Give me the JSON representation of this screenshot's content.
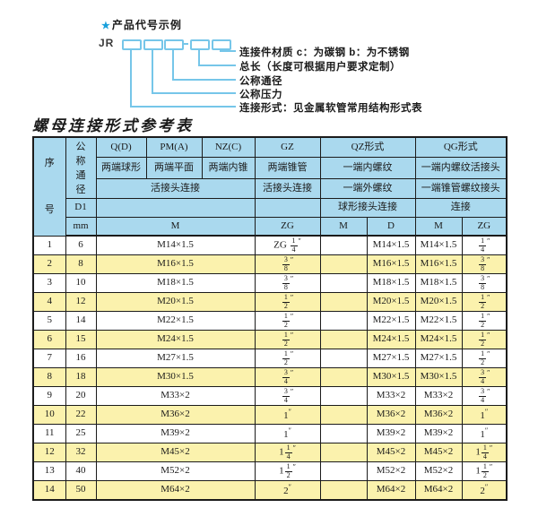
{
  "diagram": {
    "star": "★",
    "title": "产品代号示例",
    "code_prefix": "JR",
    "labels": [
      "连接件材质  c：为碳钢  b：为不锈钢",
      "总长（长度可根据用户要求定制）",
      "公称通径",
      "公称压力",
      "连接形式：见金属软管常用结构形式表"
    ]
  },
  "table_title": "螺母连接形式参考表",
  "table": {
    "header": {
      "seq": "序号",
      "dn": "公称通径",
      "d1": "D1",
      "mm": "mm",
      "groups": [
        "Q(D)",
        "PM(A)",
        "NZ(C)",
        "GZ",
        "QZ形式",
        "QG形式"
      ],
      "styles": [
        "两端球形",
        "两端平面",
        "两端内锥",
        "两端锥管",
        "一端内螺纹",
        "一端内螺纹活接头"
      ],
      "conn": [
        "活接头连接",
        "活接头连接",
        "一端外螺纹",
        "一端锥管螺纹接头"
      ],
      "conn2": [
        "球形接头连接",
        "连接"
      ],
      "units": [
        "M",
        "ZG",
        "M",
        "D",
        "M",
        "ZG"
      ]
    },
    "rows": [
      {
        "no": "1",
        "dn": "6",
        "m": "M14×1.5",
        "zg": "ZG {1/4}″",
        "qz_m": "",
        "qz_d": "M14×1.5",
        "qg_m": "M14×1.5",
        "qg_zg": "{1/4}″"
      },
      {
        "no": "2",
        "dn": "8",
        "m": "M16×1.5",
        "zg": "{3/8}″",
        "qz_m": "",
        "qz_d": "M16×1.5",
        "qg_m": "M16×1.5",
        "qg_zg": "{3/8}″"
      },
      {
        "no": "3",
        "dn": "10",
        "m": "M18×1.5",
        "zg": "{3/8}″",
        "qz_m": "",
        "qz_d": "M18×1.5",
        "qg_m": "M18×1.5",
        "qg_zg": "{3/8}″"
      },
      {
        "no": "4",
        "dn": "12",
        "m": "M20×1.5",
        "zg": "{1/2}″",
        "qz_m": "",
        "qz_d": "M20×1.5",
        "qg_m": "M20×1.5",
        "qg_zg": "{1/2}″"
      },
      {
        "no": "5",
        "dn": "14",
        "m": "M22×1.5",
        "zg": "{1/2}″",
        "qz_m": "",
        "qz_d": "M22×1.5",
        "qg_m": "M22×1.5",
        "qg_zg": "{1/2}″"
      },
      {
        "no": "6",
        "dn": "15",
        "m": "M24×1.5",
        "zg": "{1/2}″",
        "qz_m": "",
        "qz_d": "M24×1.5",
        "qg_m": "M24×1.5",
        "qg_zg": "{1/2}″"
      },
      {
        "no": "7",
        "dn": "16",
        "m": "M27×1.5",
        "zg": "{1/2}″",
        "qz_m": "",
        "qz_d": "M27×1.5",
        "qg_m": "M27×1.5",
        "qg_zg": "{1/2}″"
      },
      {
        "no": "8",
        "dn": "18",
        "m": "M30×1.5",
        "zg": "{3/4}″",
        "qz_m": "",
        "qz_d": "M30×1.5",
        "qg_m": "M30×1.5",
        "qg_zg": "{3/4}″"
      },
      {
        "no": "9",
        "dn": "20",
        "m": "M33×2",
        "zg": "{3/4}″",
        "qz_m": "",
        "qz_d": "M33×2",
        "qg_m": "M33×2",
        "qg_zg": "{3/4}″"
      },
      {
        "no": "10",
        "dn": "22",
        "m": "M36×2",
        "zg": "1″",
        "qz_m": "",
        "qz_d": "M36×2",
        "qg_m": "M36×2",
        "qg_zg": "1″"
      },
      {
        "no": "11",
        "dn": "25",
        "m": "M39×2",
        "zg": "1″",
        "qz_m": "",
        "qz_d": "M39×2",
        "qg_m": "M39×2",
        "qg_zg": "1″"
      },
      {
        "no": "12",
        "dn": "32",
        "m": "M45×2",
        "zg": "1{1/4}″",
        "qz_m": "",
        "qz_d": "M45×2",
        "qg_m": "M45×2",
        "qg_zg": "1{1/4}″"
      },
      {
        "no": "13",
        "dn": "40",
        "m": "M52×2",
        "zg": "1{1/2}″",
        "qz_m": "",
        "qz_d": "M52×2",
        "qg_m": "M52×2",
        "qg_zg": "1{1/2}″"
      },
      {
        "no": "14",
        "dn": "50",
        "m": "M64×2",
        "zg": "2″",
        "qz_m": "",
        "qz_d": "M64×2",
        "qg_m": "M64×2",
        "qg_zg": "2″"
      }
    ]
  },
  "colors": {
    "header_bg": "#aad9ee",
    "row_alt": "#fbf2ad",
    "accent_blue": "#76c6e9",
    "star_blue": "#189fdb",
    "border": "#1b1b1b"
  }
}
